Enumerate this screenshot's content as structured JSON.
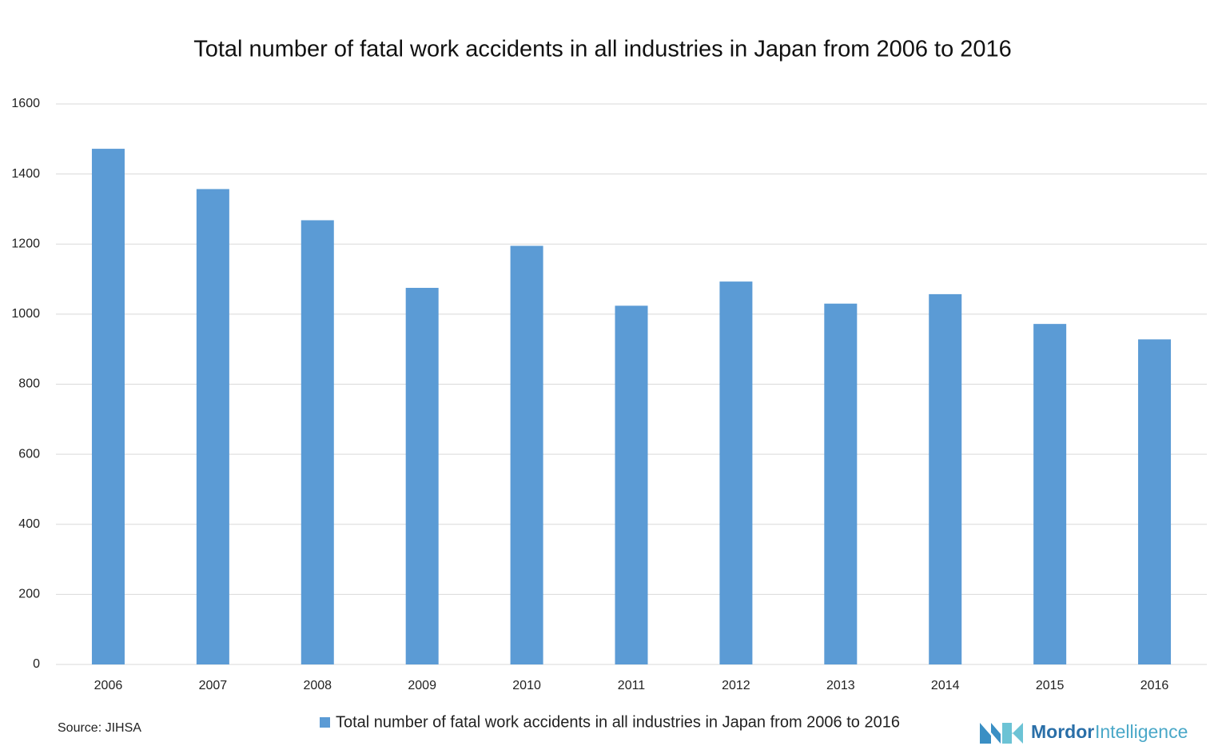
{
  "chart_data": {
    "type": "bar",
    "title": "Total number of fatal work accidents in all industries in Japan from 2006 to 2016",
    "categories": [
      "2006",
      "2007",
      "2008",
      "2009",
      "2010",
      "2011",
      "2012",
      "2013",
      "2014",
      "2015",
      "2016"
    ],
    "series": [
      {
        "name": "Total number of fatal work accidents in all industries in Japan from 2006 to 2016",
        "color": "#5b9bd5",
        "values": [
          1472,
          1357,
          1268,
          1075,
          1195,
          1024,
          1093,
          1030,
          1057,
          972,
          928
        ]
      }
    ],
    "ylim": [
      0,
      1600
    ],
    "yticks": [
      0,
      200,
      400,
      600,
      800,
      1000,
      1200,
      1400,
      1600
    ],
    "grid": true,
    "legend": "bottom",
    "source": "Source: JIHSA",
    "logo": [
      "Mordor",
      "Intelligence"
    ]
  }
}
